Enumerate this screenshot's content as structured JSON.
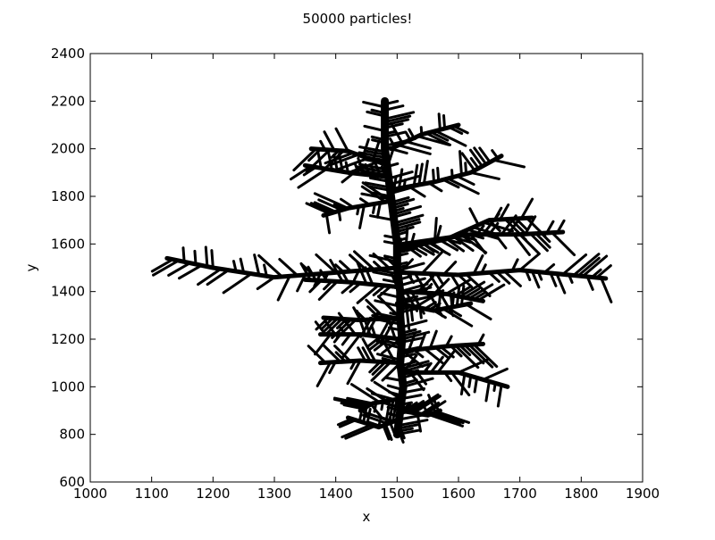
{
  "chart_data": {
    "type": "scatter",
    "title": "50000 particles!",
    "xlabel": "x",
    "ylabel": "y",
    "xlim": [
      1000,
      1900
    ],
    "ylim": [
      600,
      2400
    ],
    "xticks": [
      1000,
      1100,
      1200,
      1300,
      1400,
      1500,
      1600,
      1700,
      1800,
      1900
    ],
    "yticks": [
      600,
      800,
      1000,
      1200,
      1400,
      1600,
      1800,
      2000,
      2200,
      2400
    ],
    "grid": false,
    "legend": "none",
    "marker_color": "#000000",
    "series": [
      {
        "description_points": "approximate outline of the diffusion-limited aggregation cluster, sampled",
        "trunk": [
          [
            1500,
            800
          ],
          [
            1505,
            900
          ],
          [
            1510,
            1000
          ],
          [
            1505,
            1100
          ],
          [
            1508,
            1200
          ],
          [
            1505,
            1300
          ],
          [
            1505,
            1400
          ],
          [
            1500,
            1500
          ],
          [
            1500,
            1600
          ],
          [
            1495,
            1700
          ],
          [
            1490,
            1800
          ],
          [
            1485,
            1900
          ],
          [
            1480,
            2000
          ],
          [
            1480,
            2100
          ],
          [
            1480,
            2200
          ]
        ],
        "branches": [
          [
            [
              1500,
              1500
            ],
            [
              1400,
              1480
            ],
            [
              1300,
              1460
            ],
            [
              1200,
              1500
            ],
            [
              1125,
              1540
            ]
          ],
          [
            [
              1505,
              1480
            ],
            [
              1600,
              1470
            ],
            [
              1700,
              1490
            ],
            [
              1780,
              1470
            ],
            [
              1840,
              1455
            ]
          ],
          [
            [
              1505,
              1580
            ],
            [
              1580,
              1620
            ],
            [
              1650,
              1700
            ],
            [
              1720,
              1710
            ]
          ],
          [
            [
              1510,
              1600
            ],
            [
              1620,
              1640
            ],
            [
              1700,
              1640
            ],
            [
              1770,
              1650
            ]
          ],
          [
            [
              1490,
              1780
            ],
            [
              1420,
              1750
            ],
            [
              1380,
              1720
            ]
          ],
          [
            [
              1495,
              1830
            ],
            [
              1560,
              1860
            ],
            [
              1620,
              1900
            ],
            [
              1670,
              1970
            ]
          ],
          [
            [
              1490,
              1880
            ],
            [
              1420,
              1900
            ],
            [
              1350,
              1930
            ]
          ],
          [
            [
              1485,
              1930
            ],
            [
              1420,
              1990
            ],
            [
              1360,
              2000
            ]
          ],
          [
            [
              1490,
              2000
            ],
            [
              1540,
              2060
            ],
            [
              1600,
              2100
            ]
          ],
          [
            [
              1500,
              1350
            ],
            [
              1560,
              1320
            ],
            [
              1620,
              1350
            ]
          ],
          [
            [
              1505,
              1290
            ],
            [
              1440,
              1280
            ],
            [
              1380,
              1290
            ]
          ],
          [
            [
              1505,
              1200
            ],
            [
              1440,
              1220
            ],
            [
              1375,
              1220
            ]
          ],
          [
            [
              1510,
              1150
            ],
            [
              1580,
              1170
            ],
            [
              1640,
              1180
            ]
          ],
          [
            [
              1505,
              1100
            ],
            [
              1440,
              1110
            ],
            [
              1375,
              1100
            ]
          ],
          [
            [
              1510,
              1060
            ],
            [
              1600,
              1060
            ],
            [
              1680,
              1000
            ]
          ],
          [
            [
              1505,
              950
            ],
            [
              1460,
              930
            ],
            [
              1440,
              900
            ]
          ],
          [
            [
              1505,
              900
            ],
            [
              1550,
              880
            ],
            [
              1570,
              900
            ]
          ],
          [
            [
              1500,
              860
            ],
            [
              1470,
              830
            ],
            [
              1420,
              870
            ]
          ],
          [
            [
              1505,
              1400
            ],
            [
              1580,
              1390
            ],
            [
              1640,
              1360
            ]
          ],
          [
            [
              1500,
              1420
            ],
            [
              1420,
              1440
            ],
            [
              1350,
              1450
            ]
          ]
        ]
      }
    ]
  }
}
